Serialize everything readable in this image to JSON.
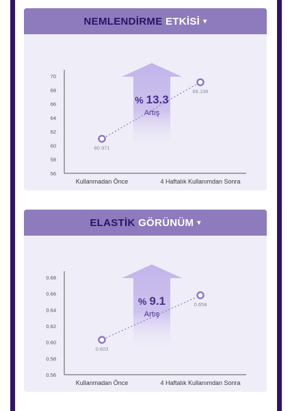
{
  "colors": {
    "frame": "#2f1468",
    "header_bg": "#8d7bbd",
    "header_dark_text": "#2a1366",
    "card_bg": "#efedf8",
    "arrow": "#c2b4ea",
    "marker": "#8e77c9",
    "pct_text": "#4a2f8c"
  },
  "sections": [
    {
      "title_dark": "NEMLENDİRME",
      "title_light": "ETKİSİ",
      "caret": "▾",
      "change_label": "%",
      "change_value": "13.3",
      "change_word": "Artış"
    },
    {
      "title_dark": "ELASTİK",
      "title_light": "GÖRÜNÜM",
      "caret": "▾",
      "change_label": "%",
      "change_value": "9.1",
      "change_word": "Artış"
    }
  ],
  "chart_data": [
    {
      "type": "line",
      "categories": [
        "Kullanmadan Önce",
        "4 Haftalık Kullanımdan Sonra"
      ],
      "values": [
        60.971,
        69.106
      ],
      "value_labels": [
        "60.971",
        "69.106"
      ],
      "yticks": [
        "56",
        "58",
        "60",
        "62",
        "64",
        "66",
        "68",
        "70"
      ],
      "ylim": [
        56,
        70
      ],
      "line_style": "dotted",
      "grid": false
    },
    {
      "type": "line",
      "categories": [
        "Kullanmadan Önce",
        "4 Haftalık Kullanımdan Sonra"
      ],
      "values": [
        0.603,
        0.658
      ],
      "value_labels": [
        "0.603",
        "0.658"
      ],
      "yticks": [
        "0.56",
        "0.58",
        "0.60",
        "0.62",
        "0.64",
        "0.66",
        "0.68"
      ],
      "ylim": [
        0.56,
        0.68
      ],
      "line_style": "dotted",
      "grid": false
    }
  ]
}
